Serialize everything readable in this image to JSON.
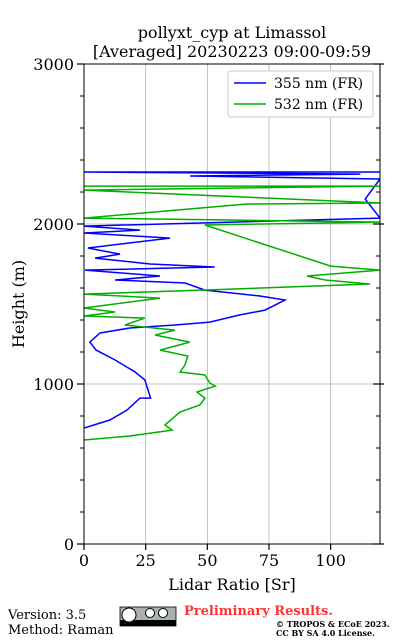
{
  "chart_data": {
    "type": "line",
    "title": "pollyxt_cyp at Limassol",
    "subtitle": "[Averaged] 20230223 09:00-09:59",
    "xlabel": "Lidar Ratio [Sr]",
    "ylabel": "Height (m)",
    "xlim": [
      0,
      120
    ],
    "xticks": [
      0,
      25,
      50,
      75,
      100
    ],
    "ylim": [
      0,
      3000
    ],
    "yticks": [
      0,
      1000,
      2000,
      3000
    ],
    "yminorticks": [
      200,
      400,
      600,
      800,
      1200,
      1400,
      1600,
      1800,
      2200,
      2400,
      2600,
      2800
    ],
    "grid": true,
    "legend": "upper right",
    "series": [
      {
        "name": "355 nm (FR)",
        "color": "#0000ff",
        "x": [
          0,
          10.5,
          17.4,
          22.7,
          27,
          24.7,
          20.7,
          12.6,
          4.9,
          2.4,
          6.5,
          18.6,
          36.9,
          51,
          63,
          73.4,
          81.5,
          71.3,
          49,
          41,
          12.6,
          30.8,
          0.4,
          53,
          26.8,
          4.5,
          14.6,
          1.6,
          34.9,
          0,
          22.7,
          0,
          120,
          114,
          120,
          43,
          112,
          0,
          120
        ],
        "y": [
          725,
          775,
          837,
          912,
          912,
          1025,
          1075,
          1150,
          1212,
          1262,
          1319,
          1350,
          1369,
          1387,
          1431,
          1462,
          1525,
          1550,
          1587,
          1631,
          1650,
          1675,
          1712,
          1731,
          1750,
          1787,
          1812,
          1850,
          1912,
          1944,
          1962,
          1987,
          2037,
          2156,
          2281,
          2300,
          2312,
          2325,
          2325
        ]
      },
      {
        "name": "532 nm (FR)",
        "color": "#00b000",
        "x": [
          0,
          18.6,
          35.7,
          32.8,
          38.9,
          47,
          49,
          45.8,
          53.2,
          51,
          49,
          38.9,
          40.9,
          42.1,
          30.8,
          42.9,
          28.8,
          36.9,
          16.6,
          24.7,
          0,
          12.6,
          0,
          30.8,
          0,
          61.2,
          115.9,
          97.7,
          90.4,
          120,
          100,
          49,
          120,
          0,
          66,
          120,
          0,
          120,
          0
        ],
        "y": [
          650,
          675,
          712,
          744,
          825,
          869,
          912,
          950,
          987,
          1006,
          1056,
          1075,
          1119,
          1175,
          1212,
          1262,
          1306,
          1337,
          1369,
          1412,
          1425,
          1450,
          1475,
          1537,
          1562,
          1594,
          1625,
          1650,
          1675,
          1712,
          1737,
          1994,
          2012,
          2037,
          2125,
          2131,
          2212,
          2237,
          2237
        ]
      }
    ]
  },
  "footer": {
    "version": "Version: 3.5",
    "method": "Method: Raman",
    "status": "Preliminary Results.",
    "copyright": "© TROPOS & ECoE 2023.",
    "license": "CC BY SA 4.0 License."
  }
}
